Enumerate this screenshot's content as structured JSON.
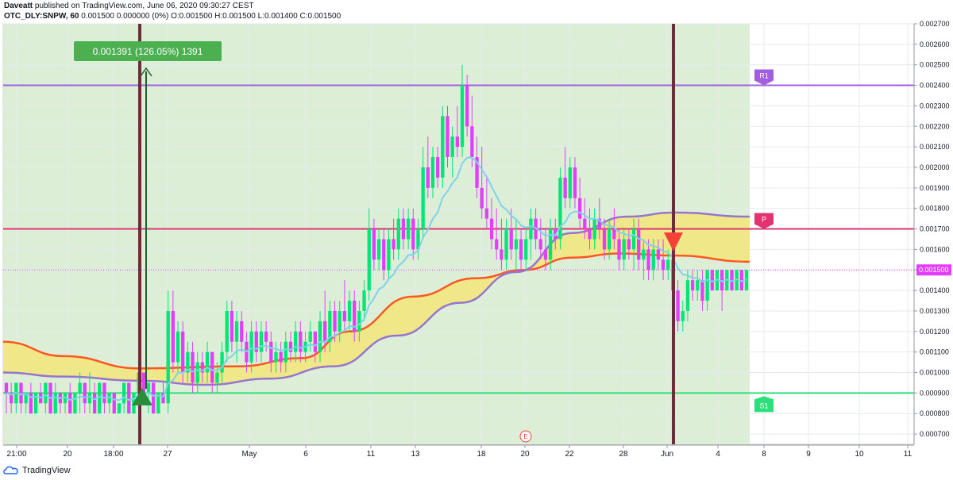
{
  "header": {
    "author": "Daveatt",
    "published_text": "published on TradingView.com, June 06, 2020 09:30:27 CEST",
    "symbol": "OTC_DLY:SNPW, 60",
    "quote": "0.001500 0.000000 (0%) O:0.001500 H:0.001500 L:0.001400 C:0.001500"
  },
  "footer": {
    "brand": "TradingView"
  },
  "colors": {
    "bull": "#00e676",
    "bear": "#e040fb",
    "ema_fast": "#7fd3e8",
    "cloud_fill": "#f2e680",
    "cloud_upper": "#ff5722",
    "cloud_lower": "#9575cd",
    "zone_bg": "#dcefd6",
    "r1": "#a15fe0",
    "p": "#e0336f",
    "s1": "#2be07a",
    "marker_line": "#6d2c3a",
    "label_box": "#4caf50"
  },
  "chart_data": {
    "type": "candlestick",
    "ylim": [
      0.00065,
      0.0027
    ],
    "y_ticks": [
      "0.000700",
      "0.000800",
      "0.000900",
      "0.001000",
      "0.001100",
      "0.001200",
      "0.001300",
      "0.001400",
      "0.001500",
      "0.001600",
      "0.001700",
      "0.001800",
      "0.001900",
      "0.002000",
      "0.002100",
      "0.002200",
      "0.002300",
      "0.002400",
      "0.002500",
      "0.002600",
      "0.002700"
    ],
    "x_ticks": [
      "21:00",
      "20",
      "18:00",
      "27",
      "May",
      "6",
      "11",
      "13",
      "18",
      "20",
      "22",
      "28",
      "Jun",
      "4",
      "8",
      "9",
      "10",
      "11"
    ],
    "last_price": "0.001500",
    "levels": [
      {
        "name": "R1",
        "value": 0.0024
      },
      {
        "name": "P",
        "value": 0.0017
      },
      {
        "name": "S1",
        "value": 0.0009
      }
    ],
    "annotation": "0.001391 (126.05%) 1391",
    "earnings_marker": "E",
    "candles": [
      [
        0.00095,
        0.00095,
        0.0008,
        0.0009
      ],
      [
        0.0009,
        0.00095,
        0.0008,
        0.00085
      ],
      [
        0.00085,
        0.00095,
        0.0008,
        0.00095
      ],
      [
        0.00095,
        0.00095,
        0.0008,
        0.00085
      ],
      [
        0.00085,
        0.0009,
        0.0008,
        0.0009
      ],
      [
        0.0009,
        0.00095,
        0.0008,
        0.0008
      ],
      [
        0.0008,
        0.0009,
        0.0008,
        0.0009
      ],
      [
        0.0009,
        0.00095,
        0.00085,
        0.00085
      ],
      [
        0.00085,
        0.00095,
        0.0008,
        0.00095
      ],
      [
        0.00095,
        0.00095,
        0.0008,
        0.0008
      ],
      [
        0.0008,
        0.00095,
        0.0008,
        0.0009
      ],
      [
        0.0009,
        0.0009,
        0.0008,
        0.00085
      ],
      [
        0.00085,
        0.0009,
        0.0008,
        0.0009
      ],
      [
        0.0009,
        0.00095,
        0.0008,
        0.0008
      ],
      [
        0.0008,
        0.0009,
        0.0008,
        0.0009
      ],
      [
        0.0009,
        0.001,
        0.0008,
        0.00095
      ],
      [
        0.00095,
        0.00095,
        0.0008,
        0.00085
      ],
      [
        0.00085,
        0.001,
        0.0008,
        0.0009
      ],
      [
        0.0009,
        0.00095,
        0.0008,
        0.0008
      ],
      [
        0.0008,
        0.00095,
        0.0008,
        0.00095
      ],
      [
        0.00095,
        0.00095,
        0.0008,
        0.00085
      ],
      [
        0.00085,
        0.0009,
        0.0008,
        0.0009
      ],
      [
        0.0009,
        0.0009,
        0.0008,
        0.0008
      ],
      [
        0.0008,
        0.00085,
        0.0008,
        0.00085
      ],
      [
        0.00085,
        0.00095,
        0.0008,
        0.00095
      ],
      [
        0.00095,
        0.00095,
        0.0008,
        0.0008
      ],
      [
        0.0008,
        0.0009,
        0.0008,
        0.0009
      ],
      [
        0.0009,
        0.001,
        0.00085,
        0.001
      ],
      [
        0.001,
        0.001,
        0.0009,
        0.0009
      ],
      [
        0.0009,
        0.00095,
        0.0008,
        0.00095
      ],
      [
        0.00095,
        0.00095,
        0.0008,
        0.0008
      ],
      [
        0.0008,
        0.0009,
        0.0008,
        0.0009
      ],
      [
        0.0009,
        0.00095,
        0.00085,
        0.00085
      ],
      [
        0.00085,
        0.0014,
        0.0008,
        0.0013
      ],
      [
        0.0013,
        0.0014,
        0.001,
        0.00105
      ],
      [
        0.00105,
        0.00125,
        0.001,
        0.0012
      ],
      [
        0.0012,
        0.00125,
        0.00095,
        0.001
      ],
      [
        0.001,
        0.00115,
        0.00095,
        0.0011
      ],
      [
        0.0011,
        0.00115,
        0.0009,
        0.00095
      ],
      [
        0.00095,
        0.0011,
        0.0009,
        0.00105
      ],
      [
        0.00105,
        0.0011,
        0.00095,
        0.001
      ],
      [
        0.001,
        0.00115,
        0.00095,
        0.0011
      ],
      [
        0.0011,
        0.0011,
        0.0009,
        0.00095
      ],
      [
        0.00095,
        0.00105,
        0.0009,
        0.001
      ],
      [
        0.001,
        0.00115,
        0.00095,
        0.0011
      ],
      [
        0.0011,
        0.00135,
        0.00105,
        0.0013
      ],
      [
        0.0013,
        0.00135,
        0.0011,
        0.00115
      ],
      [
        0.00115,
        0.0013,
        0.00105,
        0.00125
      ],
      [
        0.00125,
        0.0013,
        0.0011,
        0.00115
      ],
      [
        0.00115,
        0.0012,
        0.001,
        0.00105
      ],
      [
        0.00105,
        0.00125,
        0.001,
        0.0012
      ],
      [
        0.0012,
        0.00125,
        0.00105,
        0.0011
      ],
      [
        0.0011,
        0.00125,
        0.00105,
        0.0012
      ],
      [
        0.0012,
        0.00125,
        0.0011,
        0.00115
      ],
      [
        0.00115,
        0.0012,
        0.001,
        0.00105
      ],
      [
        0.00105,
        0.00115,
        0.001,
        0.0011
      ],
      [
        0.0011,
        0.00115,
        0.001,
        0.00105
      ],
      [
        0.00105,
        0.0012,
        0.001,
        0.00115
      ],
      [
        0.00115,
        0.0012,
        0.00105,
        0.0011
      ],
      [
        0.0011,
        0.00125,
        0.00105,
        0.0012
      ],
      [
        0.0012,
        0.00125,
        0.00105,
        0.0011
      ],
      [
        0.0011,
        0.0012,
        0.00105,
        0.00115
      ],
      [
        0.00115,
        0.00125,
        0.0011,
        0.0012
      ],
      [
        0.0012,
        0.0012,
        0.00105,
        0.0011
      ],
      [
        0.0011,
        0.0013,
        0.00105,
        0.00125
      ],
      [
        0.00125,
        0.0014,
        0.0011,
        0.00115
      ],
      [
        0.00115,
        0.00135,
        0.0011,
        0.0013
      ],
      [
        0.0013,
        0.00135,
        0.00115,
        0.0012
      ],
      [
        0.0012,
        0.00135,
        0.00115,
        0.0013
      ],
      [
        0.0013,
        0.00145,
        0.0012,
        0.00125
      ],
      [
        0.00125,
        0.0014,
        0.0012,
        0.00135
      ],
      [
        0.00135,
        0.0014,
        0.00115,
        0.0012
      ],
      [
        0.0012,
        0.00135,
        0.00115,
        0.0013
      ],
      [
        0.0013,
        0.00145,
        0.00125,
        0.0014
      ],
      [
        0.0014,
        0.0018,
        0.00135,
        0.0017
      ],
      [
        0.0017,
        0.00175,
        0.0015,
        0.00155
      ],
      [
        0.00155,
        0.0017,
        0.0015,
        0.00165
      ],
      [
        0.00165,
        0.0017,
        0.00145,
        0.0015
      ],
      [
        0.0015,
        0.0017,
        0.00145,
        0.00165
      ],
      [
        0.00165,
        0.00175,
        0.00155,
        0.0016
      ],
      [
        0.0016,
        0.0018,
        0.00155,
        0.00175
      ],
      [
        0.00175,
        0.0018,
        0.0016,
        0.00165
      ],
      [
        0.00165,
        0.0018,
        0.0016,
        0.00175
      ],
      [
        0.00175,
        0.0018,
        0.00155,
        0.0016
      ],
      [
        0.0016,
        0.00175,
        0.00155,
        0.0017
      ],
      [
        0.0017,
        0.0021,
        0.00165,
        0.002
      ],
      [
        0.002,
        0.00215,
        0.00185,
        0.0019
      ],
      [
        0.0019,
        0.0021,
        0.00185,
        0.00205
      ],
      [
        0.00205,
        0.0021,
        0.0019,
        0.00195
      ],
      [
        0.00195,
        0.0023,
        0.0019,
        0.00225
      ],
      [
        0.00225,
        0.0023,
        0.002,
        0.00205
      ],
      [
        0.00205,
        0.0022,
        0.00195,
        0.00215
      ],
      [
        0.00215,
        0.0023,
        0.00205,
        0.0021
      ],
      [
        0.0021,
        0.0025,
        0.00205,
        0.0024
      ],
      [
        0.0024,
        0.00245,
        0.00215,
        0.0022
      ],
      [
        0.0022,
        0.00235,
        0.002,
        0.00205
      ],
      [
        0.00205,
        0.00215,
        0.00185,
        0.0019
      ],
      [
        0.0019,
        0.0021,
        0.00175,
        0.0018
      ],
      [
        0.0018,
        0.00195,
        0.0017,
        0.00175
      ],
      [
        0.00175,
        0.00185,
        0.0016,
        0.00165
      ],
      [
        0.00165,
        0.0018,
        0.00155,
        0.0016
      ],
      [
        0.0016,
        0.00175,
        0.0015,
        0.00155
      ],
      [
        0.00155,
        0.00175,
        0.0015,
        0.0017
      ],
      [
        0.0017,
        0.0018,
        0.00155,
        0.0016
      ],
      [
        0.0016,
        0.00175,
        0.0015,
        0.00165
      ],
      [
        0.00165,
        0.0017,
        0.0015,
        0.00155
      ],
      [
        0.00155,
        0.0017,
        0.0015,
        0.00165
      ],
      [
        0.00165,
        0.0018,
        0.00155,
        0.00175
      ],
      [
        0.00175,
        0.0018,
        0.0016,
        0.00165
      ],
      [
        0.00165,
        0.00175,
        0.00155,
        0.0016
      ],
      [
        0.0016,
        0.0017,
        0.0015,
        0.00155
      ],
      [
        0.00155,
        0.00175,
        0.0015,
        0.0017
      ],
      [
        0.0017,
        0.00175,
        0.0016,
        0.00165
      ],
      [
        0.00165,
        0.002,
        0.0016,
        0.00195
      ],
      [
        0.00195,
        0.0021,
        0.0018,
        0.00185
      ],
      [
        0.00185,
        0.00205,
        0.0018,
        0.002
      ],
      [
        0.002,
        0.00205,
        0.0018,
        0.00185
      ],
      [
        0.00185,
        0.00195,
        0.0017,
        0.00175
      ],
      [
        0.00175,
        0.00185,
        0.00165,
        0.0017
      ],
      [
        0.0017,
        0.0018,
        0.0016,
        0.00165
      ],
      [
        0.00165,
        0.0018,
        0.0016,
        0.00175
      ],
      [
        0.00175,
        0.00185,
        0.00165,
        0.0017
      ],
      [
        0.0017,
        0.00175,
        0.00155,
        0.0016
      ],
      [
        0.0016,
        0.00175,
        0.00155,
        0.0017
      ],
      [
        0.0017,
        0.0018,
        0.0016,
        0.00165
      ],
      [
        0.00165,
        0.0017,
        0.0015,
        0.00155
      ],
      [
        0.00155,
        0.0017,
        0.0015,
        0.00165
      ],
      [
        0.00165,
        0.0017,
        0.00155,
        0.0016
      ],
      [
        0.0016,
        0.00175,
        0.0015,
        0.0017
      ],
      [
        0.0017,
        0.00175,
        0.0015,
        0.00155
      ],
      [
        0.00155,
        0.00165,
        0.00145,
        0.0016
      ],
      [
        0.0016,
        0.00165,
        0.00145,
        0.0015
      ],
      [
        0.0015,
        0.00165,
        0.00145,
        0.0016
      ],
      [
        0.0016,
        0.00165,
        0.0015,
        0.00155
      ],
      [
        0.00155,
        0.00165,
        0.00145,
        0.0015
      ],
      [
        0.0015,
        0.0016,
        0.00145,
        0.00155
      ],
      [
        0.00155,
        0.0016,
        0.001,
        0.0014
      ],
      [
        0.0014,
        0.00145,
        0.0012,
        0.00125
      ],
      [
        0.00125,
        0.00135,
        0.0012,
        0.0013
      ],
      [
        0.0013,
        0.0015,
        0.00125,
        0.00145
      ],
      [
        0.00145,
        0.0015,
        0.00135,
        0.0014
      ],
      [
        0.0014,
        0.0015,
        0.00135,
        0.00145
      ],
      [
        0.00145,
        0.0015,
        0.0013,
        0.00135
      ],
      [
        0.00135,
        0.0015,
        0.0013,
        0.0015
      ],
      [
        0.0015,
        0.0015,
        0.0014,
        0.0014
      ],
      [
        0.0014,
        0.0015,
        0.0014,
        0.0015
      ],
      [
        0.0015,
        0.0015,
        0.0013,
        0.0014
      ],
      [
        0.0014,
        0.0015,
        0.0014,
        0.0015
      ],
      [
        0.0015,
        0.0015,
        0.0014,
        0.0014
      ],
      [
        0.0014,
        0.0015,
        0.0014,
        0.0015
      ],
      [
        0.0015,
        0.0015,
        0.0014,
        0.0014
      ],
      [
        0.0014,
        0.0015,
        0.0014,
        0.0015
      ]
    ]
  }
}
